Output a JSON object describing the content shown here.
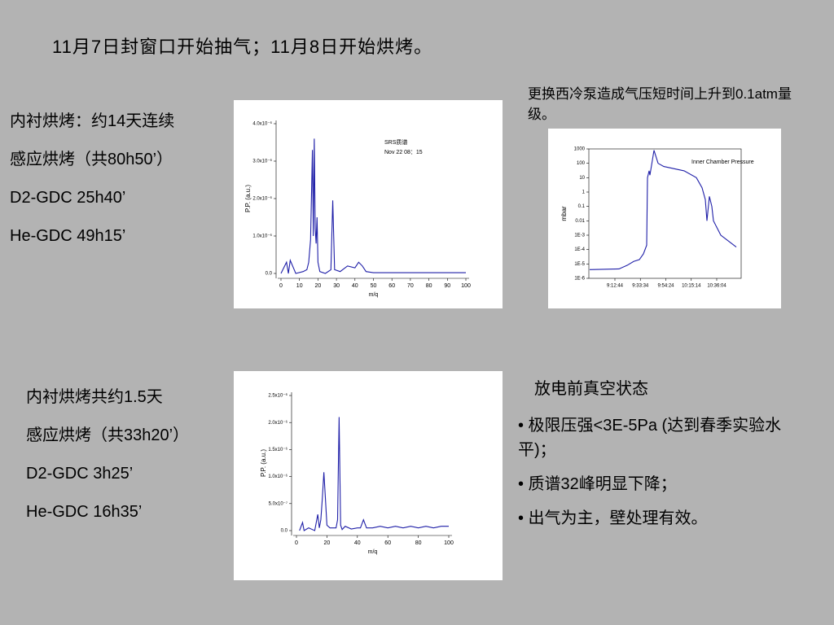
{
  "title": "11月7日封窗口开始抽气；11月8日开始烘烤。",
  "note": "更换西冷泵造成气压短时间上升到0.1atm量级。",
  "block1": [
    "内衬烘烤：约14天连续",
    "感应烘烤（共80h50’）",
    "D2-GDC 25h40’",
    "He-GDC 49h15’"
  ],
  "block2": [
    "内衬烘烤共约1.5天",
    "感应烘烤（共33h20’）",
    "D2-GDC 3h25’",
    "He-GDC 16h35’"
  ],
  "status": {
    "heading": "放电前真空状态",
    "bullets": [
      "• 极限压强<3E-5Pa (达到春季实验水平)；",
      "• 质谱32峰明显下降；",
      "• 出气为主，壁处理有效。"
    ]
  },
  "chart_data": [
    {
      "type": "line",
      "xlabel": "m/q",
      "ylabel": "P.P. (a.u.)",
      "annotations": [
        "SRS质谱",
        "Nov 22 08：15"
      ],
      "color": "#1f1fa8",
      "x": [
        0,
        2,
        3,
        4,
        5,
        8,
        12,
        14,
        15,
        16,
        17,
        17.5,
        18,
        18.5,
        19,
        19.5,
        20,
        21,
        24,
        27,
        28,
        29,
        32,
        36,
        40,
        42,
        44,
        46,
        50,
        60,
        70,
        80,
        90,
        100
      ],
      "values": [
        0,
        2e-07,
        3e-07,
        0,
        3.5e-07,
        0,
        5e-08,
        1e-07,
        3e-07,
        9e-07,
        3.3e-06,
        1e-06,
        3.6e-06,
        1.2e-06,
        8e-07,
        1.5e-06,
        3e-07,
        5e-08,
        0,
        1e-07,
        1.95e-06,
        1e-07,
        5e-08,
        2e-07,
        1.5e-07,
        3e-07,
        2e-07,
        5e-08,
        2e-08,
        2e-08,
        2e-08,
        2e-08,
        2e-08,
        2e-08
      ],
      "xlim": [
        0,
        100
      ],
      "xticks": [
        0,
        10,
        20,
        30,
        40,
        50,
        60,
        70,
        80,
        90,
        100
      ],
      "ylim": [
        0,
        4e-06
      ],
      "yticks": [
        {
          "value": 0,
          "label": "0.0"
        },
        {
          "value": 1e-06,
          "label": "1.0x10⁻⁶"
        },
        {
          "value": 2e-06,
          "label": "2.0x10⁻⁶"
        },
        {
          "value": 3e-06,
          "label": "3.0x10⁻⁶"
        },
        {
          "value": 4e-06,
          "label": "4.0x10⁻⁶"
        }
      ]
    },
    {
      "type": "line",
      "ylabel": "mbar",
      "annotations": [
        "Inner Chamber Pressure"
      ],
      "color": "#1f1fa8",
      "log_y": true,
      "x": [
        "8:52:04",
        "9:16:04",
        "9:22:44",
        "9:28:04",
        "9:32:44",
        "9:36:04",
        "9:38:44",
        "9:39:24",
        "9:40:44",
        "9:41:24",
        "9:44:44",
        "9:48:04",
        "9:52:44",
        "10:09:24",
        "10:19:24",
        "10:24:04",
        "10:26:44",
        "10:28:04",
        "10:30:04",
        "10:32:04",
        "10:33:24",
        "10:39:24",
        "10:52:04"
      ],
      "values": [
        4e-06,
        4.5e-06,
        8e-06,
        1.5e-05,
        2e-05,
        5e-05,
        0.0002,
        10,
        30,
        15,
        800,
        100,
        60,
        30,
        10,
        2,
        0.3,
        0.01,
        0.5,
        0.1,
        0.01,
        0.001,
        0.00015
      ],
      "xlim": [
        "8:51:24",
        "10:56:04"
      ],
      "xticks": [
        "9:12:44",
        "9:33:34",
        "9:54:24",
        "10:15:14",
        "10:36:04"
      ],
      "ylim": [
        1e-06,
        1000
      ],
      "yticks": [
        1000,
        100,
        10,
        1,
        0.1,
        0.01,
        {
          "value": 0.001,
          "label": "1E-3"
        },
        {
          "value": 0.0001,
          "label": "1E-4"
        },
        {
          "value": 1e-05,
          "label": "1E-5"
        },
        {
          "value": 1e-06,
          "label": "1E-6"
        }
      ]
    },
    {
      "type": "line",
      "xlabel": "m/q",
      "ylabel": "P.P. (a.u.)",
      "color": "#1f1fa8",
      "x": [
        2,
        4,
        5,
        8,
        12,
        14,
        15,
        16,
        17,
        18,
        19,
        20,
        22,
        26,
        27,
        28,
        29,
        30,
        32,
        36,
        40,
        42,
        44,
        46,
        50,
        55,
        60,
        65,
        70,
        75,
        80,
        85,
        90,
        95,
        100
      ],
      "values": [
        0,
        1.5e-07,
        0,
        5e-08,
        0,
        3e-07,
        5e-08,
        2e-07,
        6e-07,
        1.08e-06,
        6e-07,
        1e-07,
        5e-08,
        5e-08,
        2e-07,
        2.1e-06,
        1e-07,
        2e-08,
        8e-08,
        3e-08,
        5e-08,
        5e-08,
        2e-07,
        5e-08,
        5e-08,
        8e-08,
        5e-08,
        8e-08,
        5e-08,
        8e-08,
        5e-08,
        8e-08,
        5e-08,
        8e-08,
        8e-08
      ],
      "xlim": [
        0,
        100
      ],
      "xticks": [
        0,
        20,
        40,
        60,
        80,
        100
      ],
      "ylim": [
        0,
        2.5e-06
      ],
      "yticks": [
        {
          "value": 0,
          "label": "0.0"
        },
        {
          "value": 5e-07,
          "label": "5.0x10⁻⁷"
        },
        {
          "value": 1e-06,
          "label": "1.0x10⁻⁶"
        },
        {
          "value": 1.5e-06,
          "label": "1.5x10⁻⁶"
        },
        {
          "value": 2e-06,
          "label": "2.0x10⁻⁶"
        },
        {
          "value": 2.5e-06,
          "label": "2.5x10⁻⁶"
        }
      ]
    }
  ]
}
